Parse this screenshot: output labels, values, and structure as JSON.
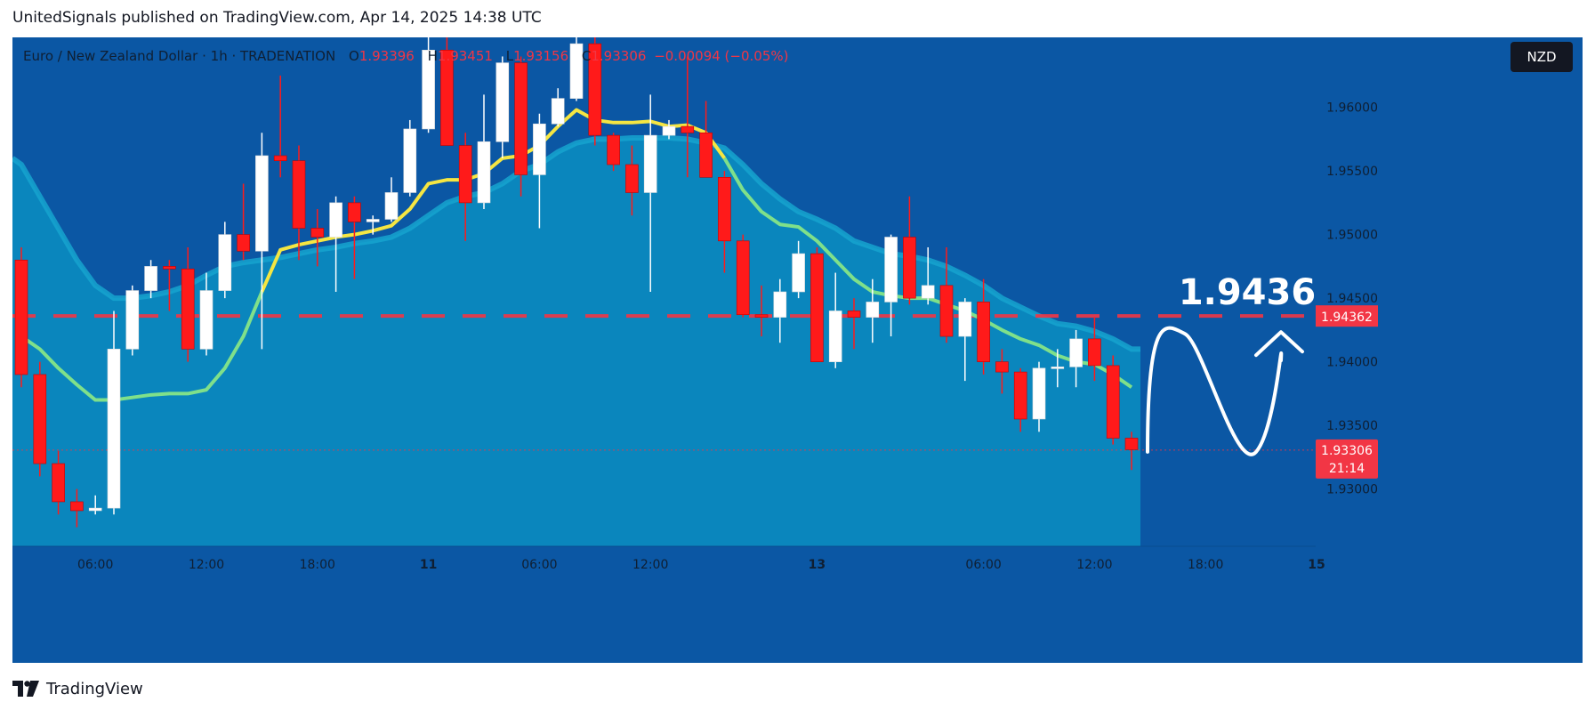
{
  "header": {
    "publish_line": "UnitedSignals published on TradingView.com, Apr 14, 2025 14:38 UTC"
  },
  "legend": {
    "symbol": "Euro / New Zealand Dollar · 1h · TRADENATION",
    "o_label": "O",
    "o_value": "1.93396",
    "h_label": "H",
    "h_value": "1.93451",
    "l_label": "L",
    "l_value": "1.93156",
    "c_label": "C",
    "c_value": "1.93306",
    "change": "−0.00094 (−0.05%)"
  },
  "currency_badge": "NZD",
  "footer": {
    "brand": "TradingView"
  },
  "colors": {
    "background": "#0b57a4",
    "band_fill": "#0a86bd",
    "band_edge": "#16a3cf",
    "up_candle": "#ffffff",
    "down_candle": "#ff1a1a",
    "ema_yellow": "#f5e642",
    "ema_green": "#7fe08a",
    "level_line": "#f23645",
    "annotation": "#ffffff"
  },
  "chart_data": {
    "type": "candlestick",
    "symbol": "EURNZD",
    "timeframe": "1h",
    "ylim": [
      1.9255,
      1.9655
    ],
    "y_ticks": [
      "1.93000",
      "1.93500",
      "1.94000",
      "1.94500",
      "1.95000",
      "1.95500",
      "1.96000"
    ],
    "x_ticks": [
      {
        "label": "06:00",
        "index": 4
      },
      {
        "label": "12:00",
        "index": 10
      },
      {
        "label": "18:00",
        "index": 16
      },
      {
        "label": "11",
        "index": 22
      },
      {
        "label": "06:00",
        "index": 28
      },
      {
        "label": "12:00",
        "index": 34
      },
      {
        "label": "13",
        "index": 43
      },
      {
        "label": "06:00",
        "index": 52
      },
      {
        "label": "12:00",
        "index": 58
      },
      {
        "label": "18:00",
        "index": 64
      },
      {
        "label": "15",
        "index": 70
      }
    ],
    "candles": [
      {
        "o": 1.948,
        "h": 1.949,
        "l": 1.938,
        "c": 1.939
      },
      {
        "o": 1.939,
        "h": 1.94,
        "l": 1.931,
        "c": 1.932
      },
      {
        "o": 1.932,
        "h": 1.933,
        "l": 1.928,
        "c": 1.929
      },
      {
        "o": 1.929,
        "h": 1.93,
        "l": 1.927,
        "c": 1.9283
      },
      {
        "o": 1.9283,
        "h": 1.9295,
        "l": 1.928,
        "c": 1.9285
      },
      {
        "o": 1.9285,
        "h": 1.944,
        "l": 1.928,
        "c": 1.941
      },
      {
        "o": 1.941,
        "h": 1.946,
        "l": 1.9405,
        "c": 1.9456
      },
      {
        "o": 1.9456,
        "h": 1.948,
        "l": 1.945,
        "c": 1.9475
      },
      {
        "o": 1.9475,
        "h": 1.948,
        "l": 1.944,
        "c": 1.9473
      },
      {
        "o": 1.9473,
        "h": 1.949,
        "l": 1.94,
        "c": 1.941
      },
      {
        "o": 1.941,
        "h": 1.947,
        "l": 1.9405,
        "c": 1.9456
      },
      {
        "o": 1.9456,
        "h": 1.951,
        "l": 1.945,
        "c": 1.95
      },
      {
        "o": 1.95,
        "h": 1.954,
        "l": 1.948,
        "c": 1.9487
      },
      {
        "o": 1.9487,
        "h": 1.958,
        "l": 1.941,
        "c": 1.9562
      },
      {
        "o": 1.9562,
        "h": 1.9625,
        "l": 1.9545,
        "c": 1.9558
      },
      {
        "o": 1.9558,
        "h": 1.957,
        "l": 1.948,
        "c": 1.9505
      },
      {
        "o": 1.9505,
        "h": 1.952,
        "l": 1.9475,
        "c": 1.9498
      },
      {
        "o": 1.9498,
        "h": 1.953,
        "l": 1.9455,
        "c": 1.9525
      },
      {
        "o": 1.9525,
        "h": 1.953,
        "l": 1.9465,
        "c": 1.951
      },
      {
        "o": 1.951,
        "h": 1.9515,
        "l": 1.95,
        "c": 1.9512
      },
      {
        "o": 1.9512,
        "h": 1.9545,
        "l": 1.951,
        "c": 1.9533
      },
      {
        "o": 1.9533,
        "h": 1.959,
        "l": 1.953,
        "c": 1.9583
      },
      {
        "o": 1.9583,
        "h": 1.967,
        "l": 1.958,
        "c": 1.9645
      },
      {
        "o": 1.9645,
        "h": 1.966,
        "l": 1.957,
        "c": 1.957
      },
      {
        "o": 1.957,
        "h": 1.958,
        "l": 1.9495,
        "c": 1.9525
      },
      {
        "o": 1.9525,
        "h": 1.961,
        "l": 1.952,
        "c": 1.9573
      },
      {
        "o": 1.9573,
        "h": 1.964,
        "l": 1.956,
        "c": 1.9635
      },
      {
        "o": 1.9635,
        "h": 1.964,
        "l": 1.953,
        "c": 1.9547
      },
      {
        "o": 1.9547,
        "h": 1.9595,
        "l": 1.9505,
        "c": 1.9587
      },
      {
        "o": 1.9587,
        "h": 1.9615,
        "l": 1.9585,
        "c": 1.9607
      },
      {
        "o": 1.9607,
        "h": 1.9665,
        "l": 1.9605,
        "c": 1.965
      },
      {
        "o": 1.965,
        "h": 1.966,
        "l": 1.957,
        "c": 1.9578
      },
      {
        "o": 1.9578,
        "h": 1.958,
        "l": 1.955,
        "c": 1.9555
      },
      {
        "o": 1.9555,
        "h": 1.957,
        "l": 1.9515,
        "c": 1.9533
      },
      {
        "o": 1.9533,
        "h": 1.961,
        "l": 1.9455,
        "c": 1.9578
      },
      {
        "o": 1.9578,
        "h": 1.959,
        "l": 1.9575,
        "c": 1.9585
      },
      {
        "o": 1.9585,
        "h": 1.964,
        "l": 1.9545,
        "c": 1.958
      },
      {
        "o": 1.958,
        "h": 1.9605,
        "l": 1.9545,
        "c": 1.9545
      },
      {
        "o": 1.9545,
        "h": 1.955,
        "l": 1.947,
        "c": 1.9495
      },
      {
        "o": 1.9495,
        "h": 1.95,
        "l": 1.9435,
        "c": 1.9437
      },
      {
        "o": 1.9437,
        "h": 1.946,
        "l": 1.942,
        "c": 1.9435
      },
      {
        "o": 1.9435,
        "h": 1.9465,
        "l": 1.9415,
        "c": 1.9455
      },
      {
        "o": 1.9455,
        "h": 1.9495,
        "l": 1.945,
        "c": 1.9485
      },
      {
        "o": 1.9485,
        "h": 1.949,
        "l": 1.94,
        "c": 1.94
      },
      {
        "o": 1.94,
        "h": 1.947,
        "l": 1.9395,
        "c": 1.944
      },
      {
        "o": 1.944,
        "h": 1.945,
        "l": 1.941,
        "c": 1.9435
      },
      {
        "o": 1.9435,
        "h": 1.9465,
        "l": 1.9415,
        "c": 1.9447
      },
      {
        "o": 1.9447,
        "h": 1.95,
        "l": 1.942,
        "c": 1.9498
      },
      {
        "o": 1.9498,
        "h": 1.953,
        "l": 1.9445,
        "c": 1.945
      },
      {
        "o": 1.945,
        "h": 1.949,
        "l": 1.9445,
        "c": 1.946
      },
      {
        "o": 1.946,
        "h": 1.949,
        "l": 1.9415,
        "c": 1.942
      },
      {
        "o": 1.942,
        "h": 1.945,
        "l": 1.9385,
        "c": 1.9447
      },
      {
        "o": 1.9447,
        "h": 1.9465,
        "l": 1.939,
        "c": 1.94
      },
      {
        "o": 1.94,
        "h": 1.941,
        "l": 1.9375,
        "c": 1.9392
      },
      {
        "o": 1.9392,
        "h": 1.9395,
        "l": 1.9345,
        "c": 1.9355
      },
      {
        "o": 1.9355,
        "h": 1.94,
        "l": 1.9345,
        "c": 1.9395
      },
      {
        "o": 1.9395,
        "h": 1.941,
        "l": 1.938,
        "c": 1.9396
      },
      {
        "o": 1.9396,
        "h": 1.9425,
        "l": 1.938,
        "c": 1.9418
      },
      {
        "o": 1.9418,
        "h": 1.9435,
        "l": 1.9385,
        "c": 1.9397
      },
      {
        "o": 1.9397,
        "h": 1.9405,
        "l": 1.9335,
        "c": 1.934
      },
      {
        "o": 1.934,
        "h": 1.9345,
        "l": 1.9315,
        "c": 1.9331
      }
    ],
    "ema_fast": [
      1.942,
      1.941,
      1.9395,
      1.9382,
      1.937,
      1.937,
      1.9372,
      1.9374,
      1.9375,
      1.9375,
      1.9378,
      1.9395,
      1.942,
      1.9455,
      1.9488,
      1.9492,
      1.9495,
      1.9498,
      1.95,
      1.9503,
      1.9507,
      1.952,
      1.954,
      1.9543,
      1.9543,
      1.9548,
      1.956,
      1.9562,
      1.957,
      1.9585,
      1.9598,
      1.959,
      1.9588,
      1.9588,
      1.9589,
      1.9585,
      1.9586,
      1.958,
      1.956,
      1.9535,
      1.9518,
      1.9508,
      1.9506,
      1.9495,
      1.948,
      1.9465,
      1.9455,
      1.9452,
      1.945,
      1.945,
      1.9445,
      1.944,
      1.9433,
      1.9425,
      1.9418,
      1.9413,
      1.9405,
      1.94,
      1.9398,
      1.939,
      1.938
    ],
    "ema_fast_yellow_until": 38,
    "band_upper": [
      1.9555,
      1.953,
      1.9505,
      1.948,
      1.946,
      1.945,
      1.945,
      1.9452,
      1.9455,
      1.946,
      1.9468,
      1.9475,
      1.9478,
      1.948,
      1.9482,
      1.9485,
      1.9488,
      1.949,
      1.9493,
      1.9495,
      1.9498,
      1.9505,
      1.9515,
      1.9525,
      1.953,
      1.9533,
      1.954,
      1.955,
      1.9555,
      1.9565,
      1.9572,
      1.9575,
      1.9575,
      1.9576,
      1.9576,
      1.9576,
      1.9575,
      1.9572,
      1.9568,
      1.9555,
      1.954,
      1.9528,
      1.9518,
      1.9512,
      1.9505,
      1.9495,
      1.949,
      1.9485,
      1.9483,
      1.948,
      1.9475,
      1.9468,
      1.946,
      1.945,
      1.9443,
      1.9436,
      1.943,
      1.9428,
      1.9424,
      1.9418,
      1.941
    ]
  },
  "annotations": {
    "level_value": 1.9436,
    "level_text": "1.9436",
    "level_price_tag": "1.94362",
    "last_value": 1.93306,
    "last_price_tag": "1.93306",
    "countdown": "21:14"
  }
}
